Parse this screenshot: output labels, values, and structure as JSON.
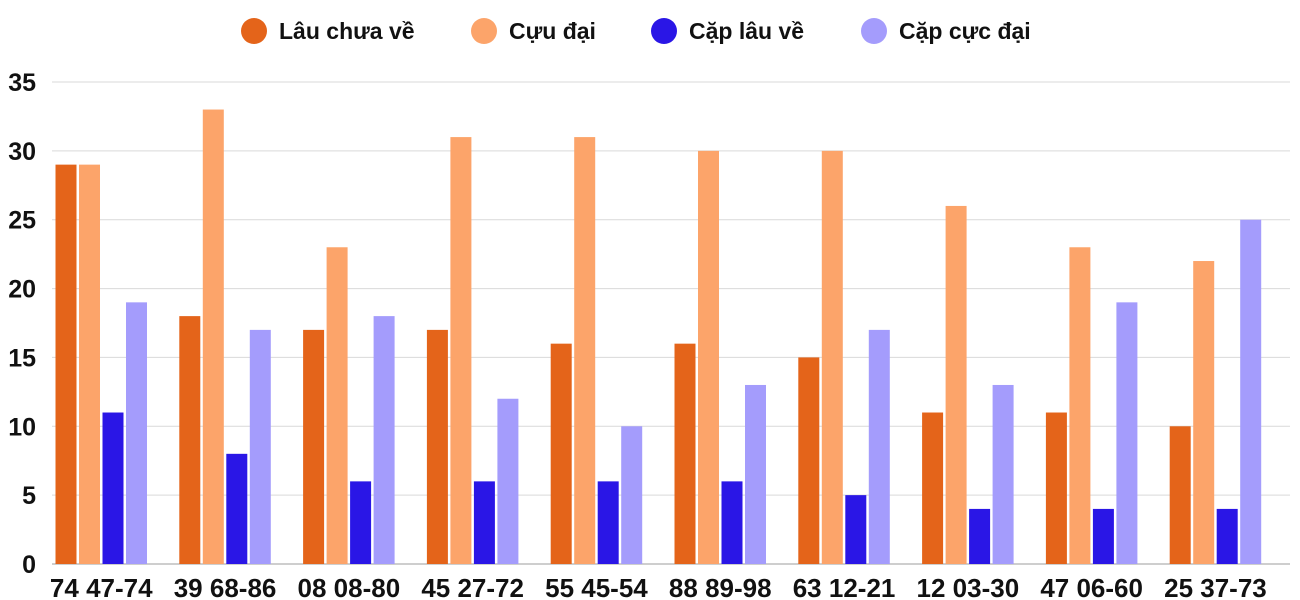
{
  "chart_data": {
    "type": "bar",
    "title": "",
    "xlabel": "",
    "ylabel": "",
    "ylim": [
      0,
      35
    ],
    "yticks": [
      0,
      5,
      10,
      15,
      20,
      25,
      30,
      35
    ],
    "grid": true,
    "legend_position": "top",
    "categories": [
      "74 47-74",
      "39 68-86",
      "08 08-80",
      "45 27-72",
      "55 45-54",
      "88 89-98",
      "63 12-21",
      "12 03-30",
      "47 06-60",
      "25 37-73"
    ],
    "series": [
      {
        "name": "Lâu chưa về",
        "color": "#e4641a",
        "values": [
          29,
          18,
          17,
          17,
          16,
          16,
          15,
          11,
          11,
          10
        ]
      },
      {
        "name": "Cựu đại",
        "color": "#fca46a",
        "values": [
          29,
          33,
          23,
          31,
          31,
          30,
          30,
          26,
          23,
          22
        ]
      },
      {
        "name": "Cặp lâu về",
        "color": "#2a16e6",
        "values": [
          11,
          8,
          6,
          6,
          6,
          6,
          5,
          4,
          4,
          4
        ]
      },
      {
        "name": "Cặp cực đại",
        "color": "#a49cfc",
        "values": [
          19,
          17,
          18,
          12,
          10,
          13,
          17,
          13,
          19,
          25
        ]
      }
    ]
  }
}
